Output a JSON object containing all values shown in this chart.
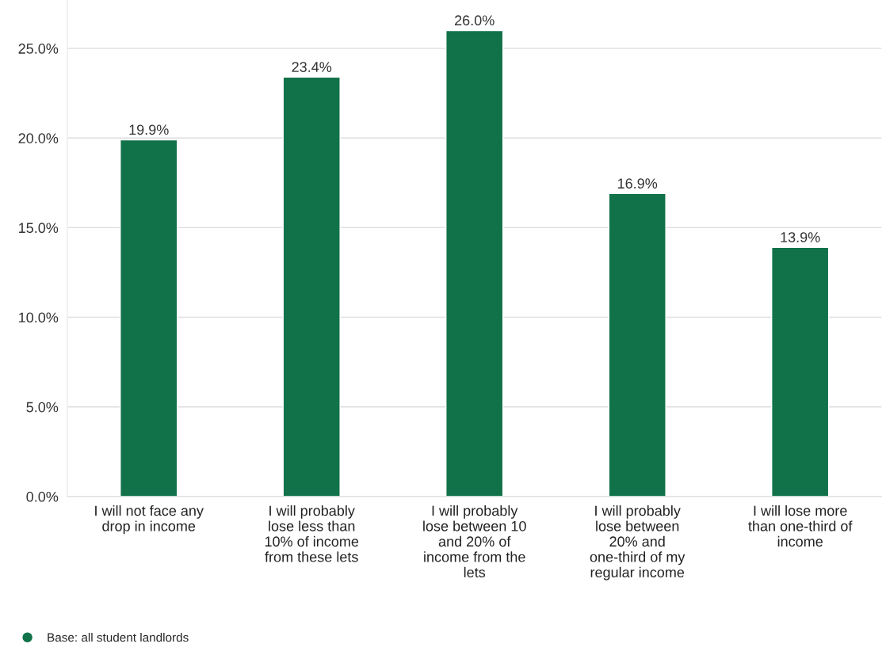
{
  "chart_data": {
    "type": "bar",
    "categories": [
      "I will not face any\ndrop in income",
      "I will probably\nlose less than\n10% of income\nfrom these lets",
      "I will probably\nlose between 10\nand 20% of\nincome from the\nlets",
      "I will probably\nlose between\n20% and\none-third of my\nregular income",
      "I will lose more\nthan one-third of\nincome"
    ],
    "series": [
      {
        "name": "Base: all student landlords",
        "color": "#11724a",
        "values": [
          19.9,
          23.4,
          26.0,
          16.9,
          13.9
        ]
      }
    ],
    "value_labels": [
      "19.9%",
      "23.4%",
      "26.0%",
      "16.9%",
      "13.9%"
    ],
    "ylim": [
      0,
      27.7
    ],
    "yticks": [
      {
        "value": 0,
        "label": "0.0%"
      },
      {
        "value": 5,
        "label": "5.0%"
      },
      {
        "value": 10,
        "label": "10.0%"
      },
      {
        "value": 15,
        "label": "15.0%"
      },
      {
        "value": 20,
        "label": "20.0%"
      },
      {
        "value": 25,
        "label": "25.0%"
      }
    ],
    "grid": "y",
    "legend": "bottom left"
  }
}
